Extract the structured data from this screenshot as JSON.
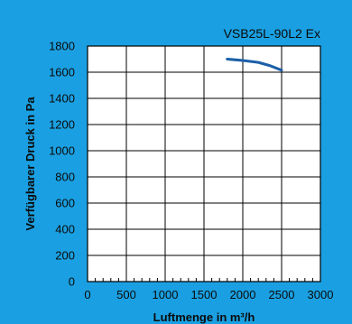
{
  "colors": {
    "background": "#1aa0e2",
    "plot_area": "#ffffff",
    "grid": "#000000",
    "curve": "#1b5fa8",
    "text": "#0a0a0a"
  },
  "chart_data": {
    "type": "line",
    "title": "VSB25L-90L2 Ex",
    "xlabel": "Luftmenge in m³/h",
    "ylabel": "Verfügbarer Druck in Pa",
    "xlim": [
      0,
      3000
    ],
    "ylim": [
      0,
      1800
    ],
    "xticks": [
      0,
      500,
      1000,
      1500,
      2000,
      2500,
      3000
    ],
    "yticks": [
      0,
      200,
      400,
      600,
      800,
      1000,
      1200,
      1400,
      1600,
      1800
    ],
    "x_minor_step": 100,
    "grid": true,
    "series": [
      {
        "x": [
          1800,
          2000,
          2200,
          2350,
          2500
        ],
        "y": [
          1700,
          1690,
          1675,
          1650,
          1615
        ]
      }
    ]
  }
}
